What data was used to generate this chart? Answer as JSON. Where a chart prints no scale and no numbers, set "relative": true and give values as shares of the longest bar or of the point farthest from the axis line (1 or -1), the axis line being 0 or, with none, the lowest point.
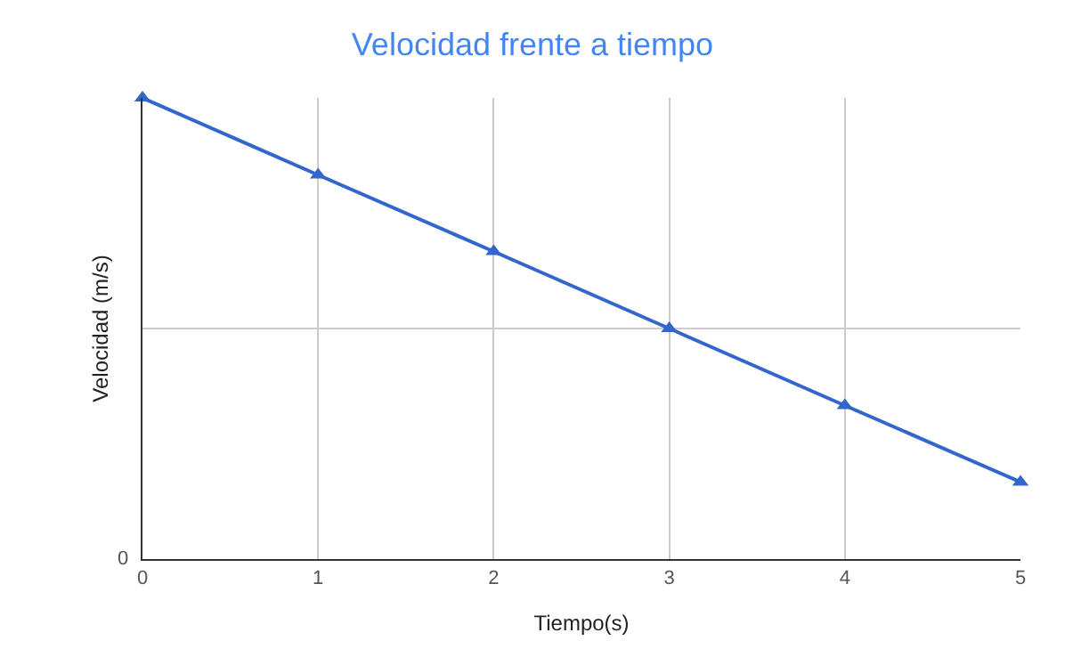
{
  "chart_data": {
    "type": "line",
    "title": "Velocidad frente a tiempo",
    "xlabel": "Tiempo(s)",
    "ylabel": "Velocidad (m/s)",
    "relative": true,
    "x": [
      0,
      1,
      2,
      3,
      4,
      5
    ],
    "series": [
      {
        "color": "#3366cc",
        "values": [
          1,
          0.833,
          0.667,
          0.5,
          0.333,
          0.167
        ]
      }
    ],
    "xlim": [
      0,
      5
    ],
    "xticks": [
      0,
      1,
      2,
      3,
      4,
      5
    ],
    "annotations": [
      "0"
    ],
    "grid": true,
    "marker": "triangle",
    "line_style": "solid",
    "legend": false
  }
}
